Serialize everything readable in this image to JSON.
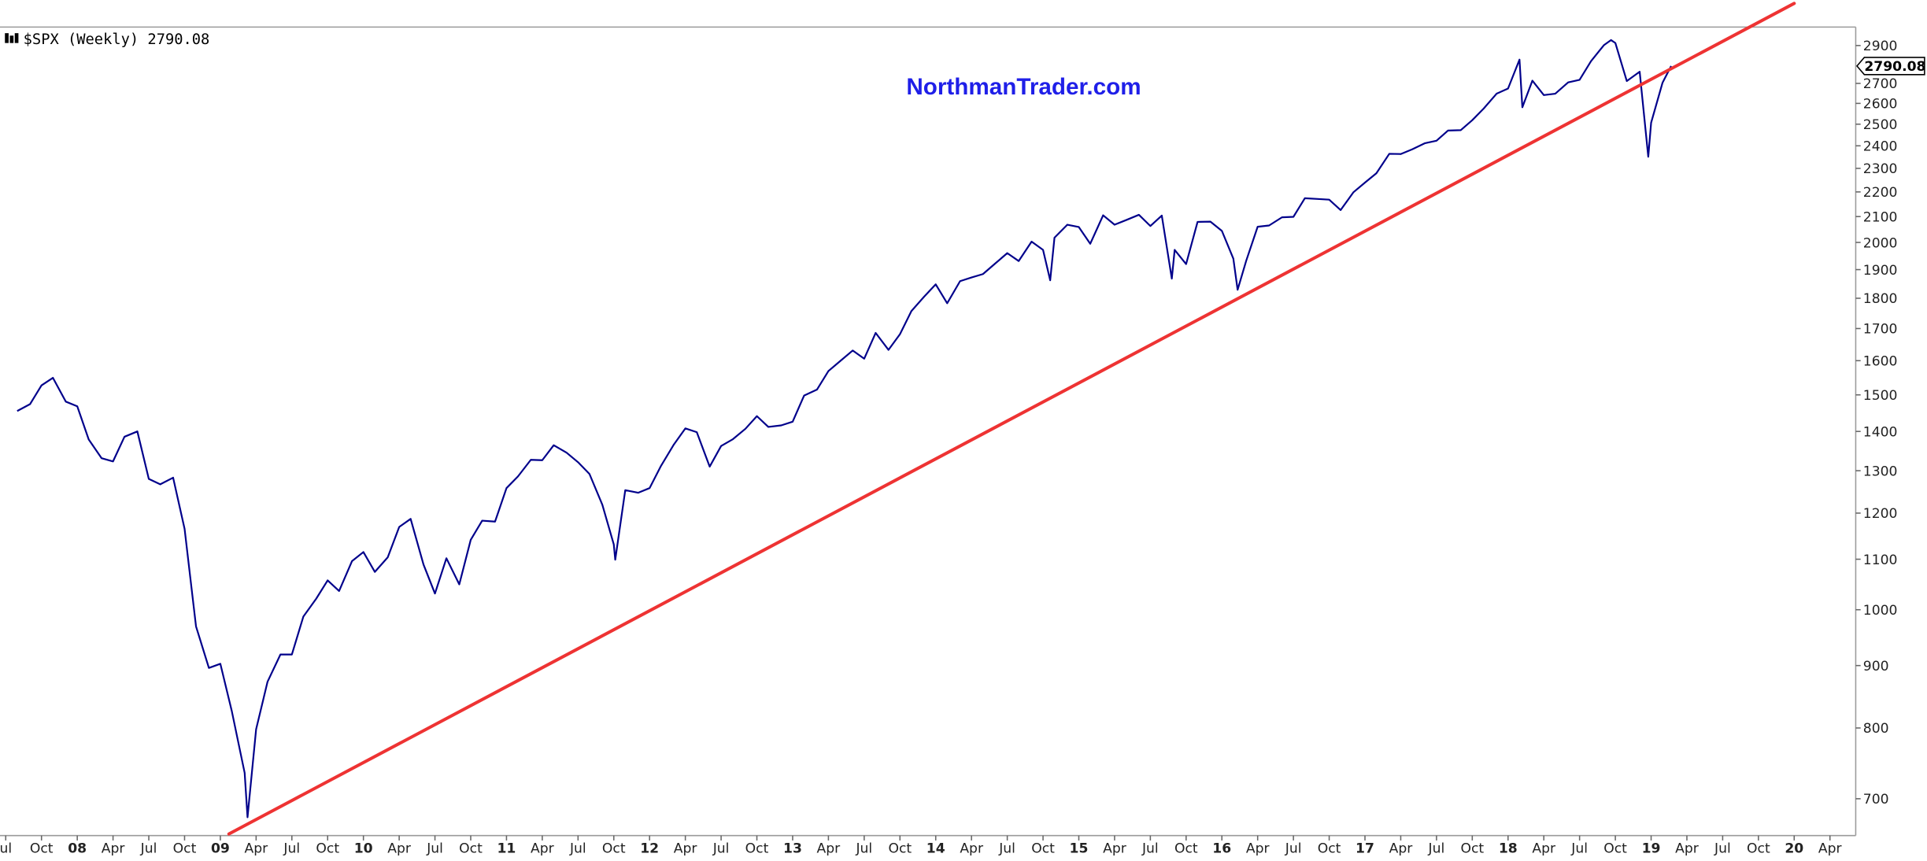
{
  "chart_data": {
    "type": "line",
    "title": "$SPX (Weekly) 2790.08",
    "watermark": "NorthmanTrader.com",
    "price_label": "2790.08",
    "log_y": true,
    "grid": false,
    "xlim": [
      2007.46,
      2020.43
    ],
    "ylim": [
      653,
      3003
    ],
    "yticks": [
      700,
      800,
      900,
      1000,
      1100,
      1200,
      1300,
      1400,
      1500,
      1600,
      1700,
      1800,
      1900,
      2000,
      2100,
      2200,
      2300,
      2400,
      2500,
      2600,
      2700,
      2900
    ],
    "xticks": [
      {
        "value": 2007.5,
        "label": "ul"
      },
      {
        "value": 2007.75,
        "label": "Oct"
      },
      {
        "value": 2008,
        "label": "08"
      },
      {
        "value": 2008.25,
        "label": "Apr"
      },
      {
        "value": 2008.5,
        "label": "Jul"
      },
      {
        "value": 2008.75,
        "label": "Oct"
      },
      {
        "value": 2009,
        "label": "09"
      },
      {
        "value": 2009.25,
        "label": "Apr"
      },
      {
        "value": 2009.5,
        "label": "Jul"
      },
      {
        "value": 2009.75,
        "label": "Oct"
      },
      {
        "value": 2010,
        "label": "10"
      },
      {
        "value": 2010.25,
        "label": "Apr"
      },
      {
        "value": 2010.5,
        "label": "Jul"
      },
      {
        "value": 2010.75,
        "label": "Oct"
      },
      {
        "value": 2011,
        "label": "11"
      },
      {
        "value": 2011.25,
        "label": "Apr"
      },
      {
        "value": 2011.5,
        "label": "Jul"
      },
      {
        "value": 2011.75,
        "label": "Oct"
      },
      {
        "value": 2012,
        "label": "12"
      },
      {
        "value": 2012.25,
        "label": "Apr"
      },
      {
        "value": 2012.5,
        "label": "Jul"
      },
      {
        "value": 2012.75,
        "label": "Oct"
      },
      {
        "value": 2013,
        "label": "13"
      },
      {
        "value": 2013.25,
        "label": "Apr"
      },
      {
        "value": 2013.5,
        "label": "Jul"
      },
      {
        "value": 2013.75,
        "label": "Oct"
      },
      {
        "value": 2014,
        "label": "14"
      },
      {
        "value": 2014.25,
        "label": "Apr"
      },
      {
        "value": 2014.5,
        "label": "Jul"
      },
      {
        "value": 2014.75,
        "label": "Oct"
      },
      {
        "value": 2015,
        "label": "15"
      },
      {
        "value": 2015.25,
        "label": "Apr"
      },
      {
        "value": 2015.5,
        "label": "Jul"
      },
      {
        "value": 2015.75,
        "label": "Oct"
      },
      {
        "value": 2016,
        "label": "16"
      },
      {
        "value": 2016.25,
        "label": "Apr"
      },
      {
        "value": 2016.5,
        "label": "Jul"
      },
      {
        "value": 2016.75,
        "label": "Oct"
      },
      {
        "value": 2017,
        "label": "17"
      },
      {
        "value": 2017.25,
        "label": "Apr"
      },
      {
        "value": 2017.5,
        "label": "Jul"
      },
      {
        "value": 2017.75,
        "label": "Oct"
      },
      {
        "value": 2018,
        "label": "18"
      },
      {
        "value": 2018.25,
        "label": "Apr"
      },
      {
        "value": 2018.5,
        "label": "Jul"
      },
      {
        "value": 2018.75,
        "label": "Oct"
      },
      {
        "value": 2019,
        "label": "19"
      },
      {
        "value": 2019.25,
        "label": "Apr"
      },
      {
        "value": 2019.5,
        "label": "Jul"
      },
      {
        "value": 2019.75,
        "label": "Oct"
      },
      {
        "value": 2020,
        "label": "20"
      },
      {
        "value": 2020.25,
        "label": "Apr"
      }
    ],
    "x": [
      2007.58,
      2007.67,
      2007.75,
      2007.83,
      2007.92,
      2008.0,
      2008.08,
      2008.17,
      2008.25,
      2008.33,
      2008.42,
      2008.5,
      2008.58,
      2008.67,
      2008.75,
      2008.83,
      2008.92,
      2009.0,
      2009.08,
      2009.17,
      2009.19,
      2009.25,
      2009.33,
      2009.42,
      2009.5,
      2009.58,
      2009.67,
      2009.75,
      2009.83,
      2009.92,
      2010.0,
      2010.08,
      2010.17,
      2010.25,
      2010.33,
      2010.42,
      2010.5,
      2010.58,
      2010.67,
      2010.75,
      2010.83,
      2010.92,
      2011.0,
      2011.08,
      2011.17,
      2011.25,
      2011.33,
      2011.42,
      2011.5,
      2011.58,
      2011.67,
      2011.75,
      2011.76,
      2011.83,
      2011.92,
      2012.0,
      2012.08,
      2012.17,
      2012.25,
      2012.33,
      2012.42,
      2012.5,
      2012.58,
      2012.67,
      2012.75,
      2012.83,
      2012.92,
      2013.0,
      2013.08,
      2013.17,
      2013.25,
      2013.33,
      2013.42,
      2013.5,
      2013.58,
      2013.67,
      2013.75,
      2013.83,
      2013.92,
      2014.0,
      2014.08,
      2014.17,
      2014.25,
      2014.33,
      2014.42,
      2014.5,
      2014.58,
      2014.67,
      2014.75,
      2014.8,
      2014.83,
      2014.92,
      2015.0,
      2015.08,
      2015.17,
      2015.25,
      2015.33,
      2015.42,
      2015.5,
      2015.58,
      2015.65,
      2015.67,
      2015.75,
      2015.83,
      2015.92,
      2016.0,
      2016.08,
      2016.11,
      2016.17,
      2016.25,
      2016.33,
      2016.42,
      2016.5,
      2016.58,
      2016.67,
      2016.75,
      2016.83,
      2016.92,
      2017.0,
      2017.08,
      2017.17,
      2017.25,
      2017.33,
      2017.42,
      2017.5,
      2017.58,
      2017.67,
      2017.75,
      2017.83,
      2017.92,
      2018.0,
      2018.08,
      2018.1,
      2018.17,
      2018.25,
      2018.33,
      2018.42,
      2018.5,
      2018.58,
      2018.67,
      2018.72,
      2018.75,
      2018.83,
      2018.92,
      2018.98,
      2019.0,
      2019.08,
      2019.14
    ],
    "series": [
      {
        "color": "#00008b",
        "values": [
          1455,
          1474,
          1527,
          1549,
          1481,
          1468,
          1379,
          1331,
          1323,
          1386,
          1400,
          1280,
          1267,
          1283,
          1165,
          969,
          896,
          903,
          826,
          735,
          676,
          798,
          873,
          919,
          919,
          987,
          1021,
          1057,
          1036,
          1096,
          1115,
          1074,
          1104,
          1169,
          1187,
          1089,
          1031,
          1102,
          1049,
          1141,
          1183,
          1181,
          1258,
          1286,
          1327,
          1326,
          1364,
          1345,
          1321,
          1292,
          1219,
          1131,
          1099,
          1253,
          1247,
          1258,
          1312,
          1366,
          1408,
          1398,
          1310,
          1362,
          1379,
          1407,
          1441,
          1412,
          1416,
          1426,
          1498,
          1515,
          1569,
          1598,
          1631,
          1606,
          1686,
          1633,
          1682,
          1757,
          1806,
          1848,
          1783,
          1859,
          1872,
          1884,
          1924,
          1960,
          1931,
          2003,
          1972,
          1862,
          2018,
          2068,
          2059,
          1995,
          2105,
          2068,
          2086,
          2107,
          2063,
          2104,
          1868,
          1972,
          1920,
          2079,
          2080,
          2044,
          1940,
          1829,
          1932,
          2060,
          2065,
          2097,
          2099,
          2174,
          2171,
          2168,
          2126,
          2199,
          2239,
          2279,
          2364,
          2363,
          2384,
          2412,
          2423,
          2470,
          2472,
          2519,
          2575,
          2648,
          2674,
          2824,
          2581,
          2714,
          2641,
          2648,
          2705,
          2718,
          2816,
          2902,
          2930,
          2914,
          2712,
          2760,
          2351,
          2507,
          2704,
          2790.08
        ]
      }
    ],
    "trendline": {
      "color": "#ee3333",
      "x": [
        2009.06,
        2020.0
      ],
      "y": [
        655,
        3140
      ]
    }
  }
}
